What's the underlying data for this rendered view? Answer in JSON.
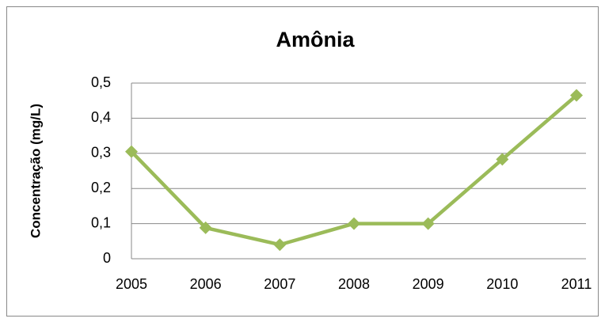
{
  "chart_data": {
    "type": "line",
    "title": "Amônia",
    "y_label": "Concentração (mg/L)",
    "categories": [
      "2005",
      "2006",
      "2007",
      "2008",
      "2009",
      "2010",
      "2011"
    ],
    "series": [
      {
        "name": "Amônia",
        "color": "#9bbb59",
        "values": [
          0.305,
          0.088,
          0.04,
          0.1,
          0.1,
          0.283,
          0.465
        ]
      }
    ],
    "ylim": [
      0,
      0.5
    ],
    "yticks": [
      0,
      {
        "value": 0.1,
        "label": "0,1"
      },
      {
        "value": 0.2,
        "label": "0,2"
      },
      {
        "value": 0.3,
        "label": "0,3"
      },
      {
        "value": 0.4,
        "label": "0,4"
      },
      {
        "value": 0.5,
        "label": "0,5"
      }
    ],
    "grid": true
  }
}
